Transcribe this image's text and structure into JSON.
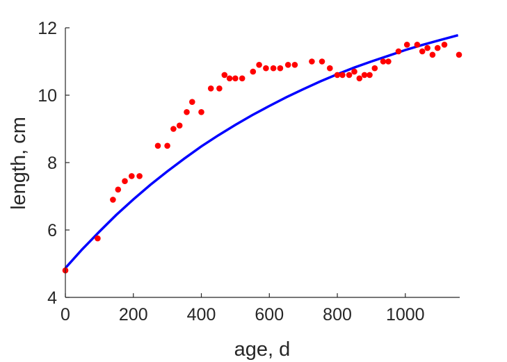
{
  "chart_data": {
    "type": "scatter",
    "xlabel": "age, d",
    "ylabel": "length, cm",
    "xlim": [
      0,
      1160
    ],
    "ylim": [
      4,
      12
    ],
    "x_ticks": [
      0,
      200,
      400,
      600,
      800,
      1000
    ],
    "y_ticks": [
      4,
      6,
      8,
      10,
      12
    ],
    "x_tick_labels": [
      "0",
      "200",
      "400",
      "600",
      "800",
      "1000"
    ],
    "y_tick_labels": [
      "4",
      "6",
      "8",
      "10",
      "12"
    ],
    "grid": false,
    "series": [
      {
        "kind": "scatter",
        "color": "#ff0000",
        "points": [
          [
            0,
            4.8
          ],
          [
            95,
            5.75
          ],
          [
            140,
            6.9
          ],
          [
            155,
            7.2
          ],
          [
            175,
            7.45
          ],
          [
            195,
            7.6
          ],
          [
            218,
            7.6
          ],
          [
            272,
            8.5
          ],
          [
            300,
            8.5
          ],
          [
            318,
            9.0
          ],
          [
            336,
            9.1
          ],
          [
            357,
            9.5
          ],
          [
            373,
            9.8
          ],
          [
            400,
            9.5
          ],
          [
            428,
            10.2
          ],
          [
            453,
            10.2
          ],
          [
            468,
            10.6
          ],
          [
            483,
            10.5
          ],
          [
            500,
            10.5
          ],
          [
            520,
            10.5
          ],
          [
            552,
            10.7
          ],
          [
            570,
            10.9
          ],
          [
            590,
            10.8
          ],
          [
            612,
            10.8
          ],
          [
            632,
            10.8
          ],
          [
            655,
            10.9
          ],
          [
            675,
            10.9
          ],
          [
            725,
            11.0
          ],
          [
            755,
            11.0
          ],
          [
            778,
            10.8
          ],
          [
            800,
            10.6
          ],
          [
            815,
            10.6
          ],
          [
            835,
            10.6
          ],
          [
            850,
            10.7
          ],
          [
            865,
            10.5
          ],
          [
            880,
            10.6
          ],
          [
            895,
            10.6
          ],
          [
            910,
            10.8
          ],
          [
            935,
            11.0
          ],
          [
            950,
            11.0
          ],
          [
            980,
            11.3
          ],
          [
            1005,
            11.5
          ],
          [
            1035,
            11.5
          ],
          [
            1050,
            11.3
          ],
          [
            1065,
            11.4
          ],
          [
            1080,
            11.2
          ],
          [
            1095,
            11.4
          ],
          [
            1115,
            11.5
          ],
          [
            1158,
            11.2
          ]
        ]
      },
      {
        "kind": "line",
        "color": "#0000ff",
        "points": [
          [
            0,
            4.87
          ],
          [
            50,
            5.43
          ],
          [
            100,
            5.95
          ],
          [
            150,
            6.45
          ],
          [
            200,
            6.91
          ],
          [
            250,
            7.34
          ],
          [
            300,
            7.74
          ],
          [
            350,
            8.12
          ],
          [
            400,
            8.48
          ],
          [
            450,
            8.81
          ],
          [
            500,
            9.12
          ],
          [
            550,
            9.41
          ],
          [
            600,
            9.68
          ],
          [
            650,
            9.94
          ],
          [
            700,
            10.18
          ],
          [
            750,
            10.41
          ],
          [
            800,
            10.62
          ],
          [
            850,
            10.82
          ],
          [
            900,
            11.0
          ],
          [
            950,
            11.17
          ],
          [
            1000,
            11.34
          ],
          [
            1050,
            11.49
          ],
          [
            1100,
            11.63
          ],
          [
            1155,
            11.78
          ]
        ]
      }
    ]
  }
}
